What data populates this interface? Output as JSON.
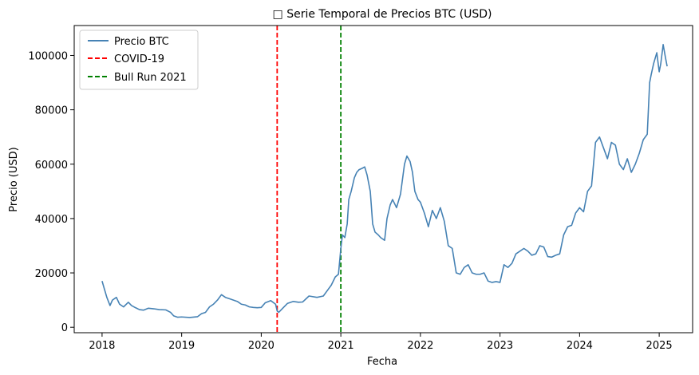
{
  "chart_data": {
    "type": "line",
    "title": "□ Serie Temporal de Precios BTC (USD)",
    "xlabel": "Fecha",
    "ylabel": "Precio (USD)",
    "xlim": [
      2017.65,
      2025.42
    ],
    "ylim": [
      -2000,
      111000
    ],
    "xticks": [
      2018,
      2019,
      2020,
      2021,
      2022,
      2023,
      2024,
      2025
    ],
    "xtick_labels": [
      "2018",
      "2019",
      "2020",
      "2021",
      "2022",
      "2023",
      "2024",
      "2025"
    ],
    "yticks": [
      0,
      20000,
      40000,
      60000,
      80000,
      100000
    ],
    "ytick_labels": [
      "0",
      "20000",
      "40000",
      "60000",
      "80000",
      "100000"
    ],
    "grid": false,
    "legend_position": "top-left",
    "series": [
      {
        "name": "Precio BTC",
        "color": "#4682b4",
        "x": [
          2018.0,
          2018.03,
          2018.06,
          2018.1,
          2018.13,
          2018.18,
          2018.22,
          2018.27,
          2018.33,
          2018.37,
          2018.42,
          2018.47,
          2018.52,
          2018.58,
          2018.65,
          2018.72,
          2018.8,
          2018.86,
          2018.9,
          2018.95,
          2019.0,
          2019.1,
          2019.2,
          2019.25,
          2019.3,
          2019.35,
          2019.4,
          2019.45,
          2019.5,
          2019.55,
          2019.6,
          2019.65,
          2019.7,
          2019.75,
          2019.8,
          2019.85,
          2019.9,
          2019.95,
          2020.0,
          2020.05,
          2020.12,
          2020.18,
          2020.2,
          2020.22,
          2020.27,
          2020.33,
          2020.4,
          2020.47,
          2020.52,
          2020.6,
          2020.7,
          2020.78,
          2020.83,
          2020.88,
          2020.93,
          2020.97,
          2021.0,
          2021.02,
          2021.05,
          2021.08,
          2021.1,
          2021.13,
          2021.17,
          2021.2,
          2021.23,
          2021.27,
          2021.3,
          2021.33,
          2021.37,
          2021.4,
          2021.43,
          2021.47,
          2021.5,
          2021.55,
          2021.58,
          2021.62,
          2021.65,
          2021.7,
          2021.75,
          2021.8,
          2021.83,
          2021.87,
          2021.9,
          2021.93,
          2021.97,
          2022.0,
          2022.05,
          2022.1,
          2022.15,
          2022.2,
          2022.25,
          2022.3,
          2022.35,
          2022.4,
          2022.45,
          2022.5,
          2022.55,
          2022.6,
          2022.65,
          2022.7,
          2022.75,
          2022.8,
          2022.85,
          2022.9,
          2022.95,
          2023.0,
          2023.05,
          2023.1,
          2023.15,
          2023.2,
          2023.25,
          2023.3,
          2023.35,
          2023.4,
          2023.45,
          2023.5,
          2023.55,
          2023.6,
          2023.65,
          2023.7,
          2023.75,
          2023.8,
          2023.85,
          2023.9,
          2023.95,
          2024.0,
          2024.05,
          2024.1,
          2024.15,
          2024.2,
          2024.25,
          2024.3,
          2024.35,
          2024.4,
          2024.45,
          2024.5,
          2024.55,
          2024.6,
          2024.65,
          2024.7,
          2024.75,
          2024.8,
          2024.85,
          2024.88,
          2024.9,
          2024.93,
          2024.95,
          2024.97,
          2025.0,
          2025.02,
          2025.05,
          2025.08,
          2025.1
        ],
        "y": [
          17000,
          14000,
          11000,
          8000,
          10000,
          11000,
          8500,
          7500,
          9200,
          8000,
          7200,
          6500,
          6300,
          7000,
          6800,
          6500,
          6400,
          5500,
          4200,
          3700,
          3800,
          3600,
          3900,
          5000,
          5500,
          7500,
          8500,
          10000,
          12000,
          11000,
          10500,
          10000,
          9500,
          8500,
          8200,
          7500,
          7300,
          7200,
          7300,
          9000,
          9800,
          8500,
          6000,
          5500,
          7000,
          8800,
          9500,
          9200,
          9300,
          11500,
          11000,
          11500,
          13500,
          15500,
          18500,
          19500,
          29000,
          34000,
          33000,
          38000,
          47000,
          50000,
          55000,
          57000,
          58000,
          58500,
          59000,
          56000,
          50000,
          38000,
          35000,
          34000,
          33000,
          32000,
          40000,
          45000,
          47000,
          44000,
          49000,
          60000,
          63000,
          61000,
          57000,
          50000,
          47000,
          46000,
          42000,
          37000,
          43000,
          40000,
          44000,
          39000,
          30000,
          29000,
          20000,
          19500,
          22000,
          23000,
          20000,
          19500,
          19500,
          20000,
          17000,
          16500,
          16800,
          16500,
          23000,
          22000,
          23500,
          27000,
          28000,
          29000,
          28000,
          26500,
          27000,
          30000,
          29500,
          26000,
          25800,
          26500,
          27000,
          34000,
          37000,
          37500,
          42000,
          44000,
          42500,
          50000,
          52000,
          68000,
          70000,
          66000,
          62000,
          68000,
          67000,
          60000,
          58000,
          62000,
          57000,
          60000,
          64000,
          69000,
          71000,
          90000,
          93000,
          97000,
          99000,
          101000,
          94000,
          97000,
          104000,
          99000,
          96000
        ]
      }
    ],
    "vlines": [
      {
        "name": "COVID-19",
        "x": 2020.2,
        "color": "#ff0000",
        "style": "dashed"
      },
      {
        "name": "Bull Run 2021",
        "x": 2021.0,
        "color": "#008000",
        "style": "dashed"
      }
    ]
  }
}
